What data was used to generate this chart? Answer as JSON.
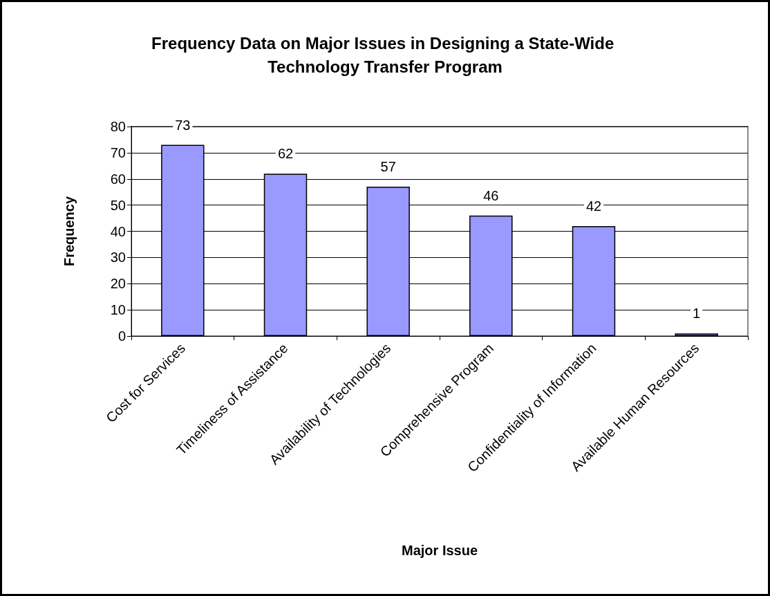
{
  "chart_data": {
    "type": "bar",
    "title": "Frequency Data on Major Issues in Designing a State-Wide Technology Transfer Program",
    "xlabel": "Major Issue",
    "ylabel": "Frequency",
    "categories": [
      "Cost for Services",
      "Timeliness of Assistance",
      "Availability of Technologies",
      "Comprehensive Program",
      "Confidentiality of Information",
      "Available Human Resources"
    ],
    "values": [
      73,
      62,
      57,
      46,
      42,
      1
    ],
    "color": "#9999ff",
    "ylim": [
      0,
      80
    ],
    "yticks": [
      0,
      10,
      20,
      30,
      40,
      50,
      60,
      70,
      80
    ],
    "grid": "y",
    "data_labels": true
  }
}
